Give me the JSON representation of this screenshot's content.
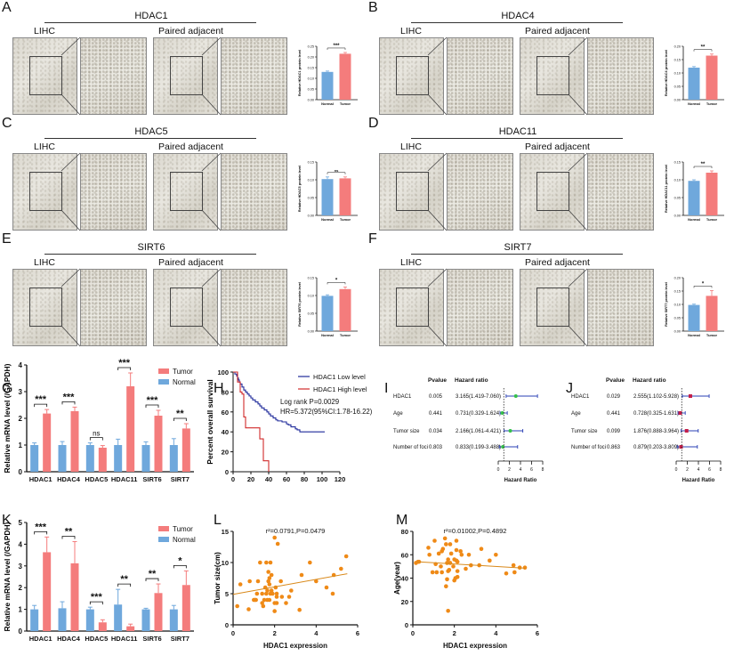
{
  "panels": {
    "A": {
      "letter": "A",
      "gene": "HDAC1",
      "left_label": "LIHC",
      "right_label": "Paired adjacent"
    },
    "B": {
      "letter": "B",
      "gene": "HDAC4",
      "left_label": "LIHC",
      "right_label": "Paired adjacent"
    },
    "C": {
      "letter": "C",
      "gene": "HDAC5",
      "left_label": "LIHC",
      "right_label": "Paired adjacent"
    },
    "D": {
      "letter": "D",
      "gene": "HDAC11",
      "left_label": "LIHC",
      "right_label": "Paired adjacent"
    },
    "E": {
      "letter": "E",
      "gene": "SIRT6",
      "left_label": "LIHC",
      "right_label": "Paired adjacent"
    },
    "F": {
      "letter": "F",
      "gene": "SIRT7",
      "left_label": "LIHC",
      "right_label": "Paired adjacent"
    },
    "G": {
      "letter": "G"
    },
    "H": {
      "letter": "H"
    },
    "I": {
      "letter": "I"
    },
    "J": {
      "letter": "J"
    },
    "K": {
      "letter": "K"
    },
    "L": {
      "letter": "L"
    },
    "M": {
      "letter": "M"
    }
  },
  "colors": {
    "tumor": "#f47c7c",
    "normal": "#6fa8dc",
    "low": "#1f2a9a",
    "high": "#d12a2a",
    "scatter": "#ef8a17",
    "green": "#35c04a",
    "crimson": "#c41e4a",
    "line_blue": "#2a3fb5"
  },
  "chart_data": [
    {
      "id": "A-bar",
      "type": "bar",
      "ylabel": "Relative HDAC1 protein level",
      "categories": [
        "Normal",
        "Tumor"
      ],
      "values": [
        0.13,
        0.215
      ],
      "errors": [
        0.004,
        0.006
      ],
      "ylim": [
        0,
        0.25
      ],
      "yticks": [
        "0.00",
        "0.05",
        "0.10",
        "0.15",
        "0.20",
        "0.25"
      ],
      "significance": "***"
    },
    {
      "id": "B-bar",
      "type": "bar",
      "ylabel": "Relative HDAC4 protein level",
      "categories": [
        "Normal",
        "Tumor"
      ],
      "values": [
        0.12,
        0.165
      ],
      "errors": [
        0.004,
        0.006
      ],
      "ylim": [
        0,
        0.2
      ],
      "yticks": [
        "0.00",
        "0.05",
        "0.10",
        "0.15",
        "0.20"
      ],
      "significance": "**"
    },
    {
      "id": "C-bar",
      "type": "bar",
      "ylabel": "Relative HDAC5 protein level",
      "categories": [
        "Normal",
        "Tumor"
      ],
      "values": [
        0.102,
        0.104
      ],
      "errors": [
        0.006,
        0.004
      ],
      "ylim": [
        0,
        0.15
      ],
      "yticks": [
        "0.00",
        "0.05",
        "0.10",
        "0.15"
      ],
      "significance": "ns"
    },
    {
      "id": "D-bar",
      "type": "bar",
      "ylabel": "Relative HDAC11 protein level",
      "categories": [
        "Normal",
        "Tumor"
      ],
      "values": [
        0.097,
        0.12
      ],
      "errors": [
        0.003,
        0.005
      ],
      "ylim": [
        0,
        0.15
      ],
      "yticks": [
        "0.00",
        "0.05",
        "0.10",
        "0.15"
      ],
      "significance": "**"
    },
    {
      "id": "E-bar",
      "type": "bar",
      "ylabel": "Relative SIRT6 protein level",
      "categories": [
        "Normal",
        "Tumor"
      ],
      "values": [
        0.099,
        0.118
      ],
      "errors": [
        0.003,
        0.006
      ],
      "ylim": [
        0,
        0.15
      ],
      "yticks": [
        "0.00",
        "0.05",
        "0.10",
        "0.15"
      ],
      "significance": "*"
    },
    {
      "id": "F-bar",
      "type": "bar",
      "ylabel": "Relative SIRT7 protein level",
      "categories": [
        "Normal",
        "Tumor"
      ],
      "values": [
        0.098,
        0.132
      ],
      "errors": [
        0.003,
        0.02
      ],
      "ylim": [
        0,
        0.2
      ],
      "yticks": [
        "0.00",
        "0.05",
        "0.10",
        "0.15",
        "0.20"
      ],
      "significance": "*"
    },
    {
      "id": "G",
      "type": "bar",
      "ylabel": "Relative mRNA level (/GAPDH)",
      "categories": [
        "HDAC1",
        "HDAC4",
        "HDAC5",
        "HDAC11",
        "SIRT6",
        "SIRT7"
      ],
      "series": [
        {
          "name": "Normal",
          "values": [
            1.0,
            1.0,
            1.0,
            1.0,
            1.0,
            1.0
          ],
          "errors": [
            0.08,
            0.13,
            0.08,
            0.22,
            0.12,
            0.24
          ]
        },
        {
          "name": "Tumor",
          "values": [
            2.18,
            2.27,
            0.9,
            3.2,
            2.1,
            1.62
          ],
          "errors": [
            0.15,
            0.15,
            0.08,
            0.5,
            0.2,
            0.18
          ]
        }
      ],
      "significance": [
        "***",
        "***",
        "ns",
        "***",
        "***",
        "**"
      ],
      "ylim": [
        0,
        4
      ],
      "yticks": [
        "0",
        "1",
        "2",
        "3",
        "4"
      ],
      "legend": [
        "Tumor",
        "Normal"
      ],
      "legend_position": "top-right"
    },
    {
      "id": "H",
      "type": "line",
      "title": "",
      "xlabel": "Mouth",
      "ylabel": "Percent overall survival",
      "xlim": [
        0,
        120
      ],
      "ylim": [
        0,
        100
      ],
      "xticks": [
        "0",
        "20",
        "40",
        "60",
        "80",
        "100",
        "120"
      ],
      "yticks": [
        "0",
        "20",
        "40",
        "60",
        "80",
        "100"
      ],
      "series": [
        {
          "name": "HDAC1 Low level",
          "x": [
            0,
            2,
            4,
            5,
            6,
            7,
            8,
            10,
            12,
            14,
            16,
            18,
            20,
            22,
            25,
            28,
            30,
            32,
            35,
            38,
            40,
            42,
            45,
            48,
            50,
            55,
            60,
            62,
            65,
            70,
            72,
            75,
            80,
            85,
            90,
            95,
            100,
            103
          ],
          "y": [
            100,
            98,
            96,
            94,
            92,
            90,
            88,
            85,
            82,
            80,
            78,
            76,
            74,
            72,
            70,
            68,
            66,
            64,
            62,
            60,
            58,
            56,
            54,
            52,
            51,
            50,
            48,
            47,
            45,
            43,
            42,
            40,
            40,
            40,
            40,
            40,
            40,
            40
          ]
        },
        {
          "name": "HDAC1 High level",
          "x": [
            0,
            5,
            8,
            10,
            12,
            14,
            16,
            25,
            30,
            32,
            34,
            38,
            40
          ],
          "y": [
            100,
            90,
            80,
            78,
            55,
            44,
            44,
            44,
            33,
            33,
            11,
            11,
            0
          ]
        }
      ],
      "annotations": [
        "Log rank P=0.0029",
        "HR=5.372(95%CI:1.78-16.22)"
      ],
      "legend_position": "top-right"
    },
    {
      "id": "I",
      "type": "forest",
      "columns": [
        "Pvalue",
        "Hazard ratio"
      ],
      "xlabel": "Hazard Ratio",
      "xticks": [
        "0",
        "2",
        "4",
        "6",
        "8"
      ],
      "xlim": [
        0,
        8
      ],
      "ref_line": 1,
      "rows": [
        {
          "label": "HDAC1",
          "p": "0.005",
          "hr_text": "3.165(1.419-7.060)",
          "hr": 3.165,
          "lo": 1.419,
          "hi": 7.06
        },
        {
          "label": "Age",
          "p": "0.441",
          "hr_text": "0.731(0.329-1.624)",
          "hr": 0.731,
          "lo": 0.329,
          "hi": 1.624
        },
        {
          "label": "Tumor size",
          "p": "0.034",
          "hr_text": "2.166(1.061-4.421)",
          "hr": 2.166,
          "lo": 1.061,
          "hi": 4.421
        },
        {
          "label": "Number of foci",
          "p": "0.803",
          "hr_text": "0.833(0.199-3.488)",
          "hr": 0.833,
          "lo": 0.199,
          "hi": 3.488
        }
      ]
    },
    {
      "id": "J",
      "type": "forest",
      "columns": [
        "Pvalue",
        "Hazard ratio"
      ],
      "xlabel": "Hazard Ratio",
      "xticks": [
        "0",
        "2",
        "4",
        "6",
        "8"
      ],
      "xlim": [
        0,
        8
      ],
      "ref_line": 1,
      "rows": [
        {
          "label": "HDAC1",
          "p": "0.029",
          "hr_text": "2.555(1.102-5.928)",
          "hr": 2.555,
          "lo": 1.102,
          "hi": 5.928
        },
        {
          "label": "Age",
          "p": "0.441",
          "hr_text": "0.728(0.325-1.631)",
          "hr": 0.728,
          "lo": 0.325,
          "hi": 1.631
        },
        {
          "label": "Tumor size",
          "p": "0.099",
          "hr_text": "1.876(0.888-3.964)",
          "hr": 1.876,
          "lo": 0.888,
          "hi": 3.964
        },
        {
          "label": "Number of foci",
          "p": "0.863",
          "hr_text": "0.879(0.203-3.809)",
          "hr": 0.879,
          "lo": 0.203,
          "hi": 3.809
        }
      ]
    },
    {
      "id": "K",
      "type": "bar",
      "ylabel": "Relative mRNA level (/GAPDH)",
      "categories": [
        "HDAC1",
        "HDAC4",
        "HDAC5",
        "HDAC11",
        "SIRT6",
        "SIRT7"
      ],
      "series": [
        {
          "name": "Normal",
          "values": [
            1.0,
            1.05,
            1.0,
            1.22,
            1.0,
            1.0
          ],
          "errors": [
            0.18,
            0.3,
            0.1,
            0.7,
            0.05,
            0.18
          ]
        },
        {
          "name": "Tumor",
          "values": [
            3.63,
            3.12,
            0.4,
            0.22,
            1.75,
            2.12
          ],
          "errors": [
            0.7,
            1.0,
            0.12,
            0.1,
            0.42,
            0.65
          ]
        }
      ],
      "significance": [
        "***",
        "**",
        "***",
        "**",
        "**",
        "*"
      ],
      "ylim": [
        0,
        5
      ],
      "yticks": [
        "0",
        "1",
        "2",
        "3",
        "4",
        "5"
      ],
      "legend": [
        "Tumor",
        "Normal"
      ],
      "legend_position": "top-right"
    },
    {
      "id": "L",
      "type": "scatter",
      "title": "r²=0.0791,P=0.0479",
      "xlabel": "HDAC1 expression",
      "ylabel": "Tumor size(cm)",
      "xlim": [
        0,
        6
      ],
      "ylim": [
        0,
        15
      ],
      "xticks": [
        "0",
        "2",
        "4",
        "6"
      ],
      "yticks": [
        "0",
        "5",
        "10",
        "15"
      ],
      "fit": {
        "x": [
          0,
          5.5
        ],
        "y": [
          4.9,
          8.2
        ]
      },
      "points": [
        [
          0.2,
          3
        ],
        [
          0.35,
          6.5
        ],
        [
          0.75,
          2.5
        ],
        [
          0.8,
          7
        ],
        [
          1.0,
          4
        ],
        [
          1.05,
          4
        ],
        [
          1.1,
          4
        ],
        [
          1.15,
          5
        ],
        [
          1.2,
          7
        ],
        [
          1.3,
          10
        ],
        [
          1.4,
          5
        ],
        [
          1.4,
          3.5
        ],
        [
          1.45,
          3
        ],
        [
          1.5,
          4
        ],
        [
          1.55,
          6
        ],
        [
          1.6,
          5
        ],
        [
          1.6,
          10
        ],
        [
          1.65,
          4
        ],
        [
          1.65,
          5.5
        ],
        [
          1.7,
          7
        ],
        [
          1.7,
          8.5
        ],
        [
          1.75,
          4
        ],
        [
          1.75,
          6.5
        ],
        [
          1.75,
          7.5
        ],
        [
          1.8,
          5
        ],
        [
          1.8,
          10
        ],
        [
          1.85,
          8
        ],
        [
          1.85,
          5.5
        ],
        [
          1.9,
          5
        ],
        [
          2.0,
          14
        ],
        [
          2.0,
          3.5
        ],
        [
          2.0,
          2.2
        ],
        [
          2.05,
          6
        ],
        [
          2.1,
          3.5
        ],
        [
          2.1,
          4.5
        ],
        [
          2.1,
          5
        ],
        [
          2.15,
          13
        ],
        [
          2.3,
          7
        ],
        [
          2.35,
          4.5
        ],
        [
          2.55,
          3.5
        ],
        [
          2.7,
          4.5
        ],
        [
          2.8,
          5.5
        ],
        [
          3.2,
          2.4
        ],
        [
          3.3,
          8
        ],
        [
          3.7,
          10
        ],
        [
          4.0,
          7
        ],
        [
          4.5,
          6
        ],
        [
          4.8,
          5
        ],
        [
          4.85,
          8
        ],
        [
          5.2,
          9
        ],
        [
          5.45,
          11
        ]
      ]
    },
    {
      "id": "M",
      "type": "scatter",
      "title": "r²=0.01002,P=0.4892",
      "xlabel": "HDAC1 expression",
      "ylabel": "Age(year)",
      "xlim": [
        0,
        6
      ],
      "ylim": [
        0,
        80
      ],
      "xticks": [
        "0",
        "2",
        "4",
        "6"
      ],
      "yticks": [
        "0",
        "20",
        "40",
        "60",
        "80"
      ],
      "fit": {
        "x": [
          0.2,
          5.4
        ],
        "y": [
          54,
          48.5
        ]
      },
      "points": [
        [
          0.15,
          53
        ],
        [
          0.25,
          54
        ],
        [
          0.3,
          54
        ],
        [
          0.75,
          66
        ],
        [
          0.8,
          60
        ],
        [
          0.95,
          45
        ],
        [
          1.05,
          72
        ],
        [
          1.1,
          52
        ],
        [
          1.15,
          45
        ],
        [
          1.25,
          61
        ],
        [
          1.35,
          50
        ],
        [
          1.4,
          45
        ],
        [
          1.4,
          63
        ],
        [
          1.45,
          65
        ],
        [
          1.55,
          74
        ],
        [
          1.6,
          69
        ],
        [
          1.6,
          33
        ],
        [
          1.65,
          39
        ],
        [
          1.65,
          53
        ],
        [
          1.7,
          56
        ],
        [
          1.7,
          46
        ],
        [
          1.7,
          12
        ],
        [
          1.75,
          47
        ],
        [
          1.8,
          53
        ],
        [
          1.8,
          69
        ],
        [
          1.85,
          61
        ],
        [
          1.95,
          50
        ],
        [
          2.0,
          56
        ],
        [
          2.0,
          38
        ],
        [
          2.05,
          40
        ],
        [
          2.1,
          72
        ],
        [
          2.1,
          64
        ],
        [
          2.1,
          55
        ],
        [
          2.15,
          41
        ],
        [
          2.15,
          46
        ],
        [
          2.15,
          54
        ],
        [
          2.3,
          63
        ],
        [
          2.35,
          60
        ],
        [
          2.55,
          48
        ],
        [
          2.7,
          60
        ],
        [
          2.8,
          51
        ],
        [
          3.2,
          51
        ],
        [
          3.3,
          65
        ],
        [
          3.7,
          55
        ],
        [
          4.0,
          60
        ],
        [
          4.5,
          44
        ],
        [
          4.85,
          51
        ],
        [
          4.9,
          45
        ],
        [
          5.15,
          49
        ],
        [
          5.4,
          49
        ]
      ]
    }
  ]
}
